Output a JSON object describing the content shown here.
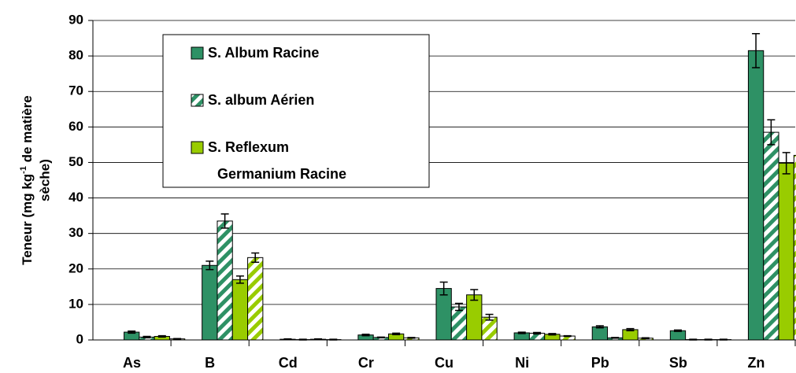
{
  "chart_data": {
    "type": "bar",
    "y_label": {
      "line1": [
        "Teneur (mg kg",
        "-1",
        " de matière"
      ],
      "line2": "sèche)"
    },
    "categories": [
      "As",
      "B",
      "Cd",
      "Cr",
      "Cu",
      "Ni",
      "Pb",
      "Sb",
      "Zn"
    ],
    "series": [
      {
        "name": "S. Album Racine",
        "color": "#2e9165",
        "hatch": false,
        "values": [
          2.2,
          21,
          0.2,
          1.4,
          14.5,
          2.0,
          3.7,
          2.6,
          81.5
        ],
        "errors": [
          0.3,
          1.2,
          0.1,
          0.2,
          1.8,
          0.2,
          0.3,
          0.2,
          4.8
        ]
      },
      {
        "name": "S. album Aérien",
        "color": "#2e9165",
        "hatch": true,
        "values": [
          0.8,
          33.5,
          0.1,
          0.7,
          9.3,
          1.9,
          0.6,
          0.1,
          58.5
        ],
        "errors": [
          0.2,
          2.0,
          0.1,
          0.1,
          1.0,
          0.2,
          0.1,
          0.1,
          3.5
        ]
      },
      {
        "name": "S. Reflexum Germanium Racine",
        "color": "#99cc00",
        "hatch": false,
        "values": [
          1.0,
          17,
          0.2,
          1.7,
          12.7,
          1.6,
          2.9,
          0.1,
          49.8
        ],
        "errors": [
          0.2,
          1.0,
          0.1,
          0.2,
          1.5,
          0.2,
          0.3,
          0.1,
          3.0
        ]
      },
      {
        "color": "#99cc00",
        "hatch": true,
        "values": [
          0.3,
          23.2,
          0.1,
          0.6,
          6.4,
          1.1,
          0.5,
          0.1,
          52
        ],
        "errors": [
          0.1,
          1.3,
          0.1,
          0.1,
          0.8,
          0.1,
          0.1,
          0.1,
          3.0
        ]
      }
    ],
    "ylim": [
      0,
      90
    ],
    "yticks": [
      0,
      10,
      20,
      30,
      40,
      50,
      60,
      70,
      80,
      90
    ],
    "grid": true
  }
}
